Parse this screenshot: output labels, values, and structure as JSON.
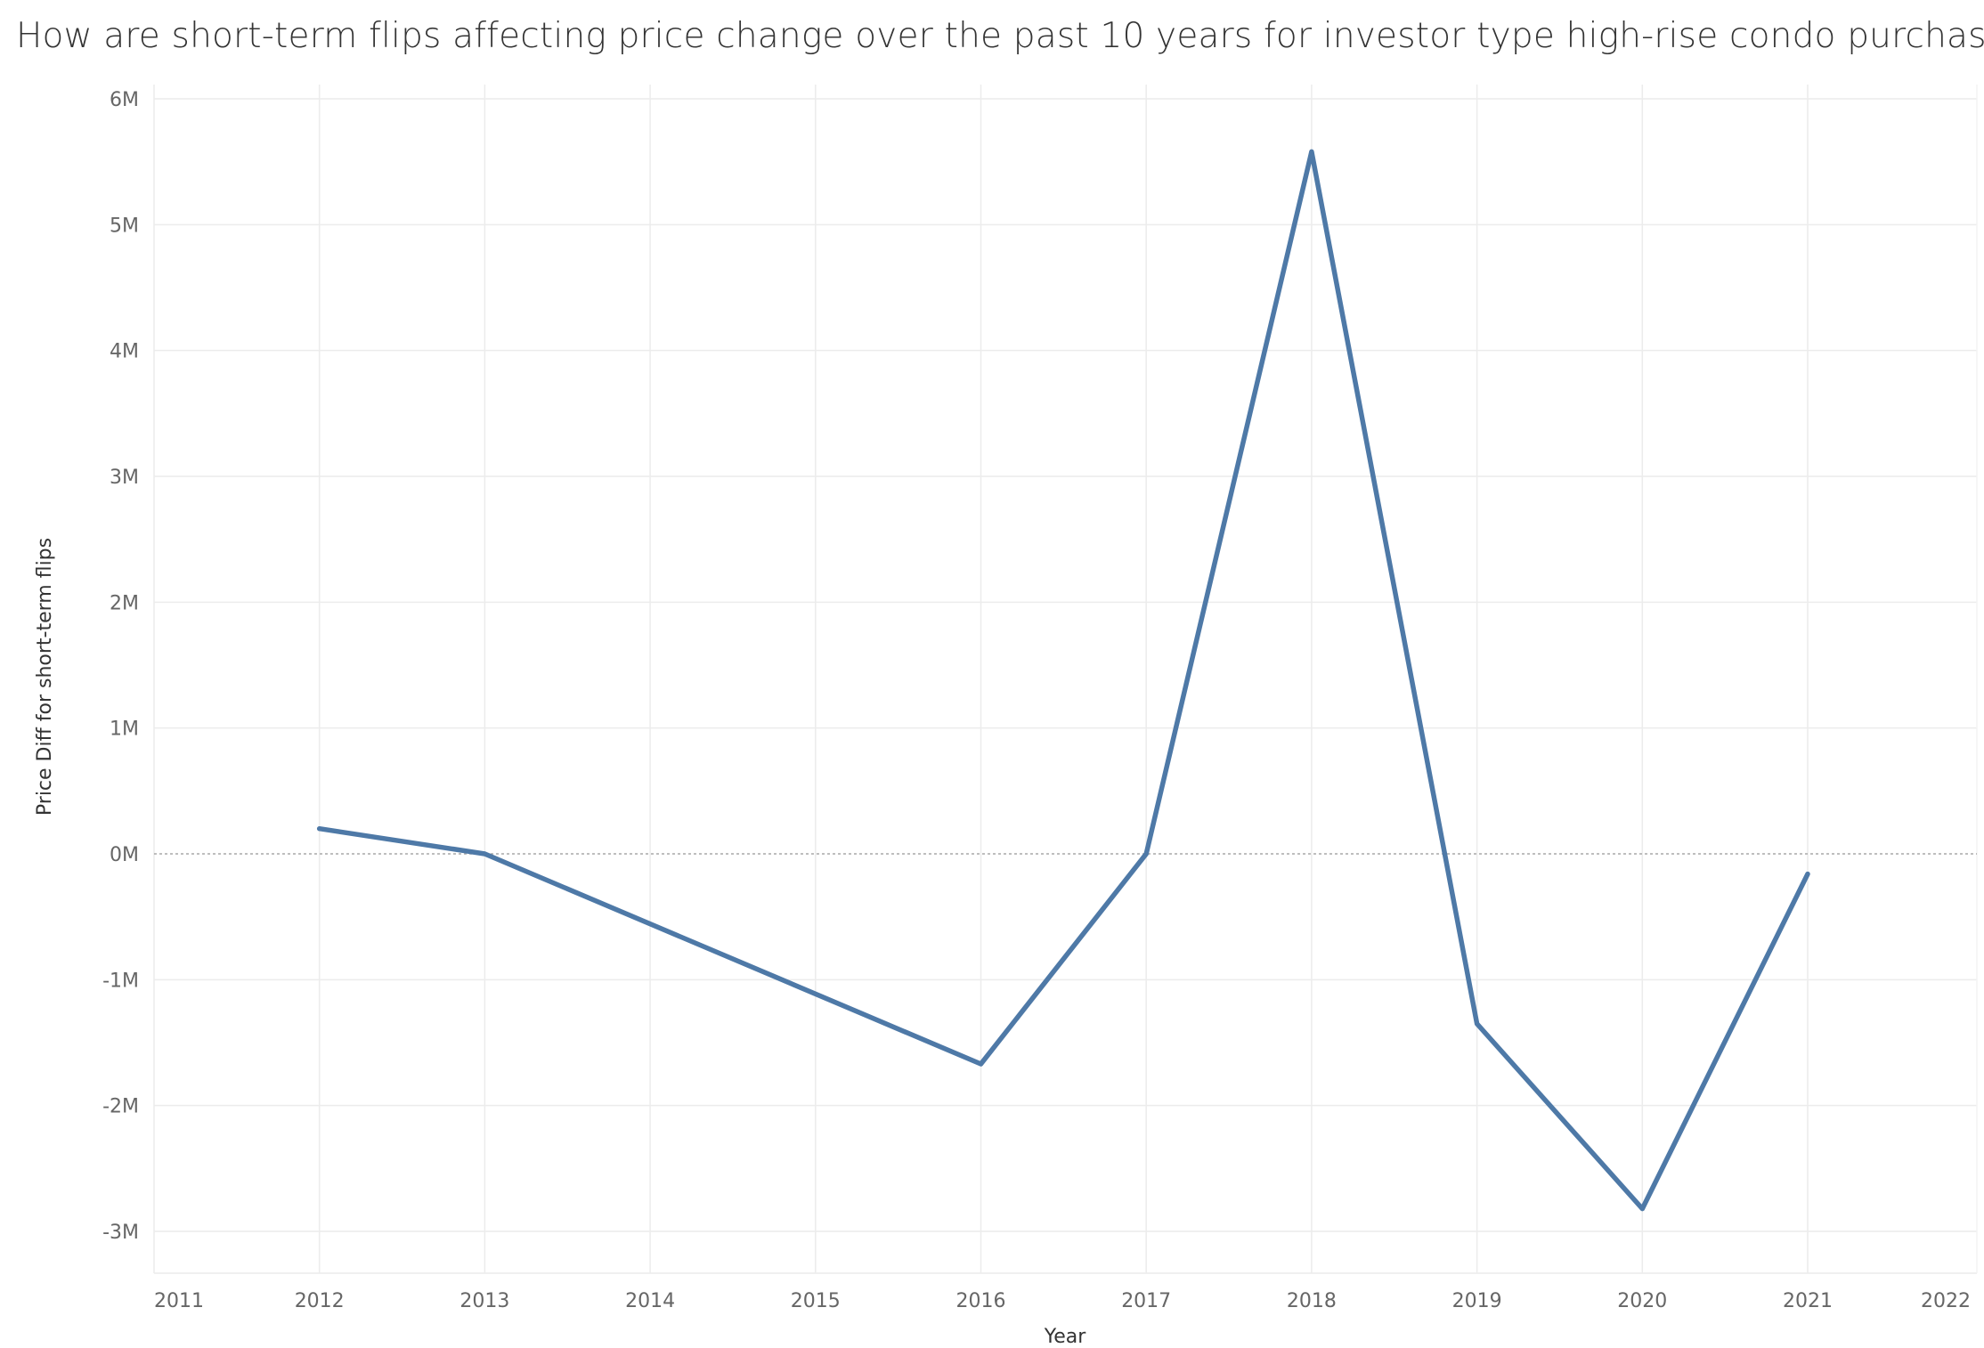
{
  "title": "How are short-term flips affecting price change over the past 10 years for investor type high-rise condo purchases?",
  "chart_data": {
    "type": "line",
    "title": "How are short-term flips affecting price change over the past 10 years for investor type high-rise condo purchases?",
    "xlabel": "Year",
    "ylabel": "Price Diff for short-term flips",
    "x_ticks": [
      "2011",
      "2012",
      "2013",
      "2014",
      "2015",
      "2016",
      "2017",
      "2018",
      "2019",
      "2020",
      "2021",
      "2022"
    ],
    "y_ticks": [
      "6M",
      "5M",
      "4M",
      "3M",
      "2M",
      "1M",
      "0M",
      "-1M",
      "-2M",
      "-3M"
    ],
    "xlim": [
      2011,
      2022
    ],
    "ylim": [
      -3000000,
      6000000
    ],
    "grid": true,
    "zero_line": true,
    "series": [
      {
        "color": "#4e79a7",
        "x": [
          2012,
          2013,
          2016,
          2017,
          2018,
          2019,
          2020,
          2021
        ],
        "values": [
          200000,
          0,
          -1670000,
          0,
          5580000,
          -1350000,
          -2820000,
          -160000
        ]
      }
    ]
  }
}
